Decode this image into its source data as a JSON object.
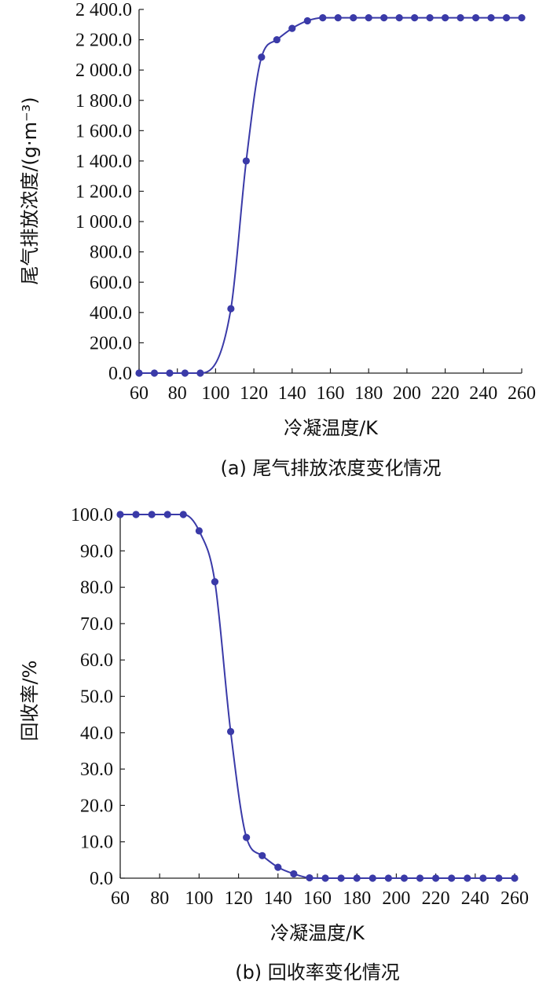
{
  "chart_data": [
    {
      "type": "line",
      "caption": "(a) 尾气排放浓度变化情况",
      "xlabel": "冷凝温度/K",
      "ylabel": "尾气排放浓度/(g·m⁻³)",
      "xlim": [
        60,
        260
      ],
      "ylim": [
        0,
        2400
      ],
      "xticks": [
        "60",
        "80",
        "100",
        "120",
        "140",
        "160",
        "180",
        "200",
        "220",
        "240",
        "260"
      ],
      "yticks": [
        "0.0",
        "200.0",
        "400.0",
        "600.0",
        "800.0",
        "1 000.0",
        "1 200.0",
        "1 400.0",
        "1 600.0",
        "1 800.0",
        "2 000.0",
        "2 200.0",
        "2 400.0"
      ],
      "series": [
        {
          "color": "#3a3aa8",
          "marker": "circle",
          "smooth": true,
          "x": [
            60,
            68,
            76,
            84,
            92,
            108,
            116,
            124,
            132,
            140,
            148,
            156,
            164,
            172,
            180,
            188,
            196,
            204,
            212,
            220,
            228,
            236,
            244,
            252,
            260
          ],
          "y": [
            0,
            0,
            0,
            0,
            0,
            425,
            1400,
            2085,
            2200,
            2275,
            2325,
            2345,
            2345,
            2345,
            2345,
            2345,
            2345,
            2345,
            2345,
            2345,
            2345,
            2345,
            2345,
            2345,
            2345
          ]
        }
      ]
    },
    {
      "type": "line",
      "caption": "(b) 回收率变化情况",
      "xlabel": "冷凝温度/K",
      "ylabel": "回收率/%",
      "xlim": [
        60,
        260
      ],
      "ylim": [
        0,
        100
      ],
      "xticks": [
        "60",
        "80",
        "100",
        "120",
        "140",
        "160",
        "180",
        "200",
        "220",
        "240",
        "260"
      ],
      "yticks": [
        "0.0",
        "10.0",
        "20.0",
        "30.0",
        "40.0",
        "50.0",
        "60.0",
        "70.0",
        "80.0",
        "90.0",
        "100.0"
      ],
      "series": [
        {
          "color": "#3a3aa8",
          "marker": "circle",
          "smooth": true,
          "x": [
            60,
            68,
            76,
            84,
            92,
            100,
            108,
            116,
            124,
            132,
            140,
            148,
            156,
            164,
            172,
            180,
            188,
            196,
            204,
            212,
            220,
            228,
            236,
            244,
            252,
            260
          ],
          "y": [
            100,
            100,
            100,
            100,
            100,
            95.5,
            81.5,
            40.3,
            11.2,
            6.2,
            3.0,
            1.2,
            0.1,
            0,
            0,
            0,
            0,
            0,
            0,
            0,
            0,
            0,
            0,
            0,
            0,
            0
          ]
        }
      ]
    }
  ]
}
